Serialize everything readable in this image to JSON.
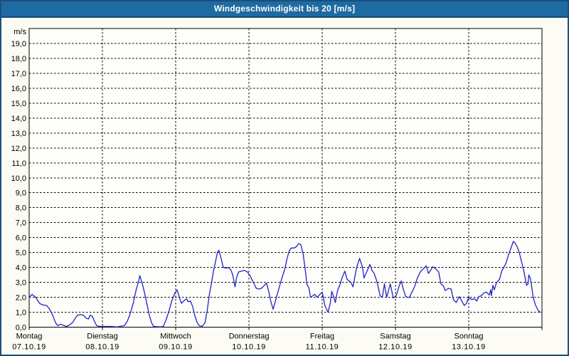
{
  "window": {
    "title": "Windgeschwindigkeit bis 20 [m/s]"
  },
  "colors": {
    "titlebar_bg": "#1E6AA2",
    "titlebar_border": "#134C79",
    "frame_border": "#1A4F7B",
    "background": "#FCFCF4",
    "plot_background": "#FEFEFA",
    "grid": "#000000",
    "axis_text": "#000000",
    "title_text": "#FFFFFF",
    "series_line": "#2121C8"
  },
  "chart_data": {
    "type": "line",
    "title": "Windgeschwindigkeit bis 20 [m/s]",
    "y_axis": {
      "unit_label": "m/s",
      "min": 0,
      "max": 20,
      "tick_step": 1,
      "tick_labels": [
        "19,0",
        "18,0",
        "17,0",
        "16,0",
        "15,0",
        "14,0",
        "13,0",
        "12,0",
        "11,0",
        "10,0",
        "9,0",
        "8,0",
        "7,0",
        "6,0",
        "5,0",
        "4,0",
        "3,0",
        "2,0",
        "1,0",
        "0,0"
      ],
      "grid": "dashed"
    },
    "x_axis": {
      "range_days": 7,
      "grid": "dashed vertical line at each day boundary",
      "days": [
        {
          "label": "Montag",
          "date": "07.10.19"
        },
        {
          "label": "Dienstag",
          "date": "08.10.19"
        },
        {
          "label": "Mittwoch",
          "date": "09.10.19"
        },
        {
          "label": "Donnerstag",
          "date": "10.10.19"
        },
        {
          "label": "Freitag",
          "date": "11.10.19"
        },
        {
          "label": "Samstag",
          "date": "12.10.19"
        },
        {
          "label": "Sonntag",
          "date": "13.10.19"
        }
      ]
    },
    "series": [
      {
        "name": "Windgeschwindigkeit",
        "unit": "m/s",
        "color": "#2121C8",
        "points": [
          [
            0.0,
            2.0
          ],
          [
            0.04,
            2.2
          ],
          [
            0.09,
            2.0
          ],
          [
            0.14,
            1.6
          ],
          [
            0.18,
            1.5
          ],
          [
            0.24,
            1.45
          ],
          [
            0.28,
            1.2
          ],
          [
            0.32,
            0.8
          ],
          [
            0.36,
            0.3
          ],
          [
            0.39,
            0.1
          ],
          [
            0.43,
            0.2
          ],
          [
            0.48,
            0.1
          ],
          [
            0.51,
            0.05
          ],
          [
            0.55,
            0.15
          ],
          [
            0.59,
            0.3
          ],
          [
            0.63,
            0.6
          ],
          [
            0.66,
            0.8
          ],
          [
            0.7,
            0.85
          ],
          [
            0.74,
            0.8
          ],
          [
            0.78,
            0.6
          ],
          [
            0.81,
            0.55
          ],
          [
            0.83,
            0.8
          ],
          [
            0.86,
            0.75
          ],
          [
            0.89,
            0.4
          ],
          [
            0.92,
            0.1
          ],
          [
            0.96,
            0.05
          ],
          [
            1.01,
            0.05
          ],
          [
            1.11,
            0.05
          ],
          [
            1.2,
            0.02
          ],
          [
            1.3,
            0.1
          ],
          [
            1.34,
            0.4
          ],
          [
            1.38,
            0.9
          ],
          [
            1.42,
            1.6
          ],
          [
            1.46,
            2.5
          ],
          [
            1.49,
            3.0
          ],
          [
            1.51,
            3.45
          ],
          [
            1.54,
            3.0
          ],
          [
            1.57,
            2.4
          ],
          [
            1.61,
            1.5
          ],
          [
            1.64,
            0.8
          ],
          [
            1.67,
            0.3
          ],
          [
            1.7,
            0.05
          ],
          [
            1.79,
            0.02
          ],
          [
            1.83,
            0.05
          ],
          [
            1.87,
            0.5
          ],
          [
            1.91,
            1.1
          ],
          [
            1.95,
            1.8
          ],
          [
            1.99,
            2.3
          ],
          [
            2.02,
            2.5
          ],
          [
            2.05,
            2.0
          ],
          [
            2.08,
            1.6
          ],
          [
            2.12,
            1.8
          ],
          [
            2.15,
            1.9
          ],
          [
            2.17,
            1.7
          ],
          [
            2.2,
            1.75
          ],
          [
            2.23,
            1.4
          ],
          [
            2.26,
            0.8
          ],
          [
            2.29,
            0.35
          ],
          [
            2.32,
            0.1
          ],
          [
            2.36,
            0.05
          ],
          [
            2.4,
            0.3
          ],
          [
            2.43,
            1.1
          ],
          [
            2.46,
            2.2
          ],
          [
            2.49,
            3.0
          ],
          [
            2.51,
            3.6
          ],
          [
            2.54,
            4.3
          ],
          [
            2.57,
            5.0
          ],
          [
            2.59,
            5.15
          ],
          [
            2.62,
            4.6
          ],
          [
            2.65,
            4.0
          ],
          [
            2.69,
            3.95
          ],
          [
            2.72,
            4.0
          ],
          [
            2.75,
            3.85
          ],
          [
            2.78,
            3.5
          ],
          [
            2.81,
            2.7
          ],
          [
            2.83,
            3.3
          ],
          [
            2.86,
            3.7
          ],
          [
            2.9,
            3.75
          ],
          [
            2.94,
            3.8
          ],
          [
            2.98,
            3.7
          ],
          [
            3.02,
            3.4
          ],
          [
            3.06,
            3.0
          ],
          [
            3.1,
            2.6
          ],
          [
            3.14,
            2.55
          ],
          [
            3.17,
            2.6
          ],
          [
            3.21,
            2.8
          ],
          [
            3.24,
            2.95
          ],
          [
            3.27,
            2.4
          ],
          [
            3.3,
            1.7
          ],
          [
            3.33,
            1.2
          ],
          [
            3.37,
            1.9
          ],
          [
            3.41,
            2.6
          ],
          [
            3.45,
            3.3
          ],
          [
            3.49,
            3.9
          ],
          [
            3.52,
            4.6
          ],
          [
            3.55,
            5.1
          ],
          [
            3.58,
            5.3
          ],
          [
            3.62,
            5.3
          ],
          [
            3.65,
            5.4
          ],
          [
            3.68,
            5.6
          ],
          [
            3.71,
            5.5
          ],
          [
            3.74,
            4.9
          ],
          [
            3.77,
            3.8
          ],
          [
            3.79,
            2.9
          ],
          [
            3.82,
            2.6
          ],
          [
            3.84,
            2.0
          ],
          [
            3.87,
            2.1
          ],
          [
            3.9,
            2.2
          ],
          [
            3.93,
            2.0
          ],
          [
            3.97,
            2.2
          ],
          [
            4.0,
            2.35
          ],
          [
            4.04,
            1.4
          ],
          [
            4.08,
            1.0
          ],
          [
            4.11,
            1.6
          ],
          [
            4.13,
            2.4
          ],
          [
            4.16,
            2.0
          ],
          [
            4.18,
            1.65
          ],
          [
            4.21,
            2.45
          ],
          [
            4.25,
            2.95
          ],
          [
            4.27,
            3.3
          ],
          [
            4.31,
            3.75
          ],
          [
            4.34,
            3.2
          ],
          [
            4.39,
            3.0
          ],
          [
            4.42,
            2.7
          ],
          [
            4.47,
            4.0
          ],
          [
            4.51,
            4.6
          ],
          [
            4.55,
            4.05
          ],
          [
            4.57,
            3.3
          ],
          [
            4.59,
            3.5
          ],
          [
            4.65,
            4.2
          ],
          [
            4.68,
            3.8
          ],
          [
            4.71,
            3.6
          ],
          [
            4.75,
            3.0
          ],
          [
            4.79,
            2.1
          ],
          [
            4.82,
            2.0
          ],
          [
            4.85,
            2.9
          ],
          [
            4.88,
            2.0
          ],
          [
            4.93,
            2.9
          ],
          [
            4.97,
            1.95
          ],
          [
            5.01,
            2.1
          ],
          [
            5.05,
            2.75
          ],
          [
            5.08,
            3.1
          ],
          [
            5.11,
            2.5
          ],
          [
            5.14,
            2.05
          ],
          [
            5.17,
            2.0
          ],
          [
            5.19,
            2.0
          ],
          [
            5.22,
            2.3
          ],
          [
            5.26,
            2.7
          ],
          [
            5.3,
            3.3
          ],
          [
            5.34,
            3.7
          ],
          [
            5.38,
            3.9
          ],
          [
            5.42,
            4.1
          ],
          [
            5.45,
            3.6
          ],
          [
            5.48,
            3.8
          ],
          [
            5.51,
            4.05
          ],
          [
            5.55,
            3.9
          ],
          [
            5.59,
            3.7
          ],
          [
            5.62,
            2.9
          ],
          [
            5.65,
            2.8
          ],
          [
            5.68,
            2.45
          ],
          [
            5.72,
            2.6
          ],
          [
            5.76,
            2.55
          ],
          [
            5.79,
            1.85
          ],
          [
            5.83,
            1.65
          ],
          [
            5.87,
            2.05
          ],
          [
            5.9,
            1.8
          ],
          [
            5.94,
            1.45
          ],
          [
            5.97,
            1.6
          ],
          [
            6.0,
            2.0
          ],
          [
            6.04,
            1.85
          ],
          [
            6.08,
            1.9
          ],
          [
            6.11,
            1.75
          ],
          [
            6.14,
            2.05
          ],
          [
            6.17,
            2.1
          ],
          [
            6.21,
            2.3
          ],
          [
            6.24,
            2.35
          ],
          [
            6.28,
            2.15
          ],
          [
            6.31,
            2.1
          ],
          [
            6.3,
            2.5
          ],
          [
            6.33,
            2.8
          ],
          [
            6.35,
            2.5
          ],
          [
            6.38,
            3.0
          ],
          [
            6.42,
            3.2
          ],
          [
            6.45,
            3.75
          ],
          [
            6.48,
            4.0
          ],
          [
            6.51,
            4.3
          ],
          [
            6.54,
            4.8
          ],
          [
            6.57,
            5.2
          ],
          [
            6.61,
            5.75
          ],
          [
            6.63,
            5.65
          ],
          [
            6.66,
            5.4
          ],
          [
            6.69,
            5.0
          ],
          [
            6.71,
            4.6
          ],
          [
            6.73,
            4.2
          ],
          [
            6.75,
            3.8
          ],
          [
            6.77,
            3.3
          ],
          [
            6.79,
            2.8
          ],
          [
            6.81,
            2.9
          ],
          [
            6.82,
            3.5
          ],
          [
            6.84,
            3.3
          ],
          [
            6.86,
            2.7
          ],
          [
            6.88,
            2.0
          ],
          [
            6.91,
            1.5
          ],
          [
            6.95,
            1.1
          ],
          [
            6.98,
            1.0
          ]
        ]
      }
    ]
  }
}
